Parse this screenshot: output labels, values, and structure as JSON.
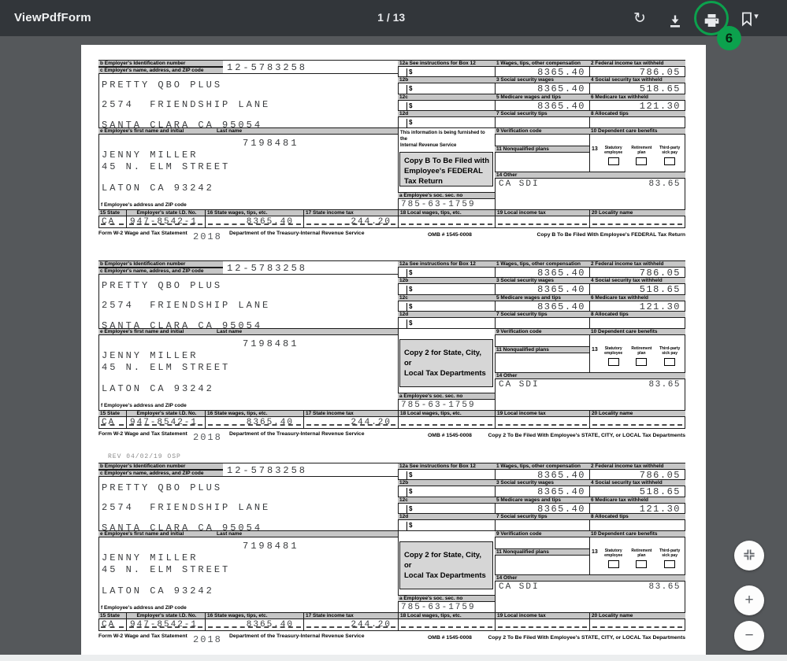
{
  "viewer": {
    "title": "ViewPdfForm",
    "page_indicator": "1 / 13",
    "annotation_badge": "6",
    "icons": {
      "rotate": "rotate-icon",
      "rotate_glyph": "↻",
      "download": "download-icon",
      "print": "print-icon",
      "bookmark": "bookmark-icon",
      "caret_glyph": "▾",
      "fit": "fit-to-page-icon",
      "zoom_in_glyph": "+",
      "zoom_out_glyph": "−"
    },
    "colors": {
      "toolbar_bg": "#32363a",
      "canvas_bg": "#55585b",
      "accent_green": "#0ca14d"
    }
  },
  "w2": {
    "labels": {
      "box_b": "b Employer's Identification number",
      "box_c": "c Employer's name, address, and ZIP code",
      "box_e": "e Employee's first name and initial",
      "last_name": "Last name",
      "box_f": "f Employee's address and ZIP code",
      "box_12a": "12a See instructions for Box 12",
      "box_12b": "12b",
      "box_12c": "12c",
      "box_12d": "12d",
      "dollar": "$",
      "box_1": "1 Wages, tips, other compensation",
      "box_2": "2 Federal income tax withheld",
      "box_3": "3 Social security wages",
      "box_4": "4 Social security tax withheld",
      "box_5": "5 Medicare wages and tips",
      "box_6": "6 Medicare tax withheld",
      "box_7": "7 Social security tips",
      "box_8": "8 Allocated tips",
      "box_9": "9 Verification code",
      "box_10": "10 Dependent care benefits",
      "box_11": "11 Nonqualified plans",
      "box_13": "13",
      "box_13_items": [
        "Statutory\nemployee",
        "Retirement\nplan",
        "Third-party\nsick pay"
      ],
      "box_14": "14 Other",
      "box_15": "15 State",
      "state_id": "Employer's state I.D. No.",
      "box_16": "16 State wages, tips, etc.",
      "box_17": "17 State income tax",
      "box_18": "18 Local wages, tips, etc.",
      "box_19": "19 Local income tax",
      "box_20": "20 Locality name",
      "ssn": "a Employee's soc. sec. no",
      "form_name": "Form W-2 Wage and Tax Statement",
      "dept": "Department of the Treasury-Internal Revenue Service",
      "omb": "OMB #  1545-0008"
    },
    "values": {
      "ein": "12-5783258",
      "employer_name": "PRETTY QBO PLUS",
      "employer_street": "2574  FRIENDSHIP LANE",
      "employer_city": "SANTA CLARA CA 95054",
      "control_number": "7198481",
      "employee_name": "JENNY MILLER",
      "employee_street": "45 N. ELM STREET",
      "employee_city": "LATON CA 93242",
      "ssn": "785-63-1759",
      "box_1": "8365.40",
      "box_2": "786.05",
      "box_3": "8365.40",
      "box_4": "518.65",
      "box_5": "8365.40",
      "box_6": "121.30",
      "box_14_text": "CA SDI",
      "box_14_amount": "83.65",
      "state": "CA",
      "state_id": "947-8542-1",
      "state_wages": "8365.40",
      "state_tax": "244.20",
      "year": "2018"
    }
  },
  "forms": [
    {
      "rev_note": "",
      "furnished_note": "This information is being furnished to the\nInternal Revenue Service",
      "copy_box": "Copy B To Be Filed with\nEmployee's FEDERAL\nTax Return",
      "copy_footer": "Copy B To Be Filed With Employee's FEDERAL Tax Return"
    },
    {
      "rev_note": "",
      "furnished_note": "",
      "copy_box": "Copy 2 for State, City, or\nLocal  Tax Departments",
      "copy_footer": "Copy  2 To Be Filed With Employee's STATE, CITY, or LOCAL Tax Departments"
    },
    {
      "rev_note": "REV 04/02/19 OSP",
      "furnished_note": "",
      "copy_box": "Copy 2 for State, City, or\nLocal  Tax Departments",
      "copy_footer": "Copy  2 To Be Filed With Employee's STATE, CITY, or LOCAL Tax Departments"
    }
  ]
}
